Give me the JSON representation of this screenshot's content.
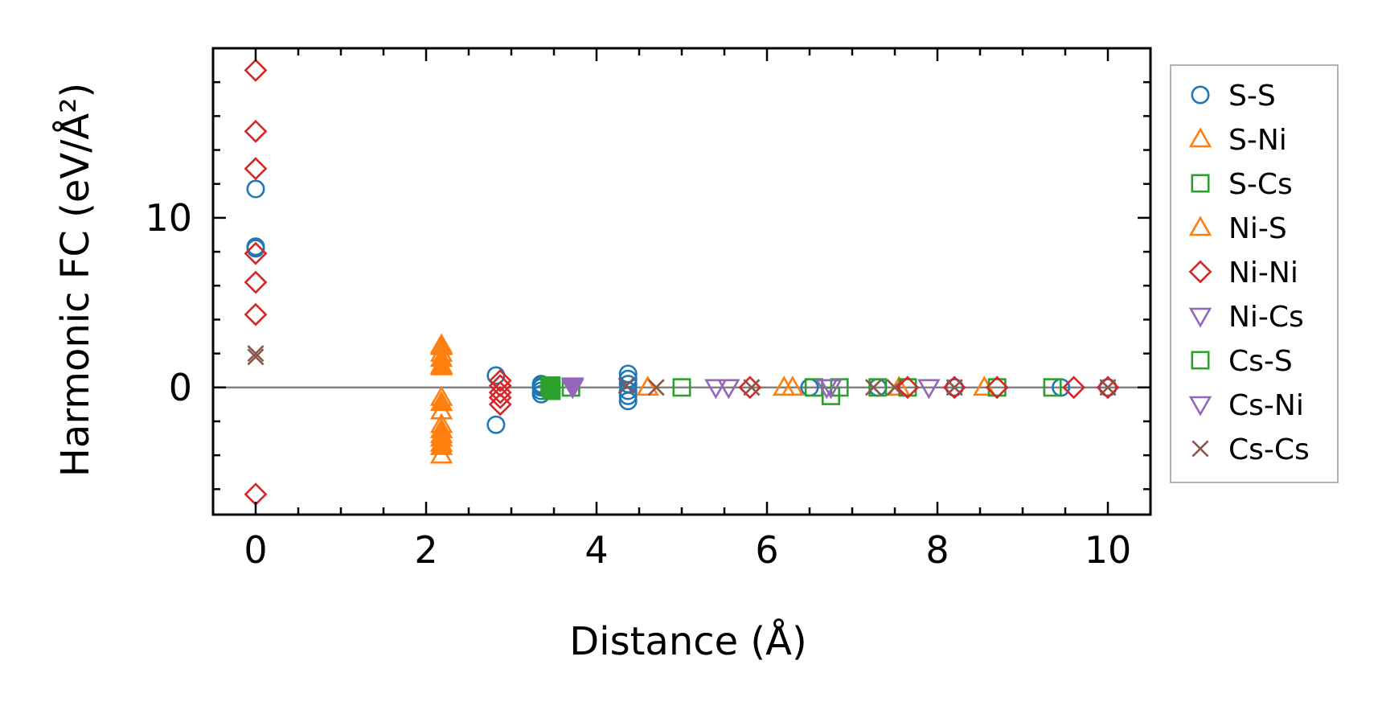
{
  "chart_data": {
    "type": "scatter",
    "title": "",
    "xlabel": "Distance (Å)",
    "ylabel": "Harmonic FC (eV/Å²)",
    "xlim": [
      -0.5,
      10.5
    ],
    "ylim": [
      -7.5,
      20
    ],
    "xticks": [
      0,
      2,
      4,
      6,
      8,
      10
    ],
    "yticks": [
      0,
      10
    ],
    "xtick_labels": [
      "0",
      "2",
      "4",
      "6",
      "8",
      "10"
    ],
    "ytick_labels": [
      "0",
      "10"
    ],
    "zero_line": 0,
    "legend_position": "right",
    "series": [
      {
        "name": "S-S",
        "marker": "circle",
        "color": "#1f77b4",
        "filled": false,
        "points": [
          [
            0,
            11.7
          ],
          [
            0,
            8.3
          ],
          [
            0,
            8.2
          ],
          [
            2.82,
            0.7
          ],
          [
            2.82,
            -2.2
          ],
          [
            3.35,
            0.2
          ],
          [
            3.35,
            0.0
          ],
          [
            3.35,
            -0.2
          ],
          [
            3.35,
            -0.4
          ],
          [
            3.36,
            0.1
          ],
          [
            4.37,
            0.8
          ],
          [
            4.37,
            0.5
          ],
          [
            4.37,
            0.2
          ],
          [
            4.37,
            -0.2
          ],
          [
            4.37,
            -0.5
          ],
          [
            4.37,
            -0.8
          ],
          [
            6.5,
            0.0
          ],
          [
            7.3,
            0.0
          ],
          [
            8.2,
            0.0
          ],
          [
            9.45,
            0.0
          ],
          [
            10.0,
            0.0
          ]
        ]
      },
      {
        "name": "S-Ni",
        "marker": "triangle-up",
        "color": "#ff7f0e",
        "filled": false,
        "points": [
          [
            2.18,
            2.5
          ],
          [
            2.18,
            2.0
          ],
          [
            2.18,
            1.3
          ],
          [
            2.18,
            -0.6
          ],
          [
            2.18,
            -1.4
          ],
          [
            2.18,
            -2.2
          ],
          [
            2.18,
            -2.8
          ],
          [
            2.18,
            -3.3
          ],
          [
            2.18,
            -4.0
          ],
          [
            4.6,
            0.0
          ],
          [
            6.2,
            0.0
          ],
          [
            6.3,
            0.0
          ],
          [
            7.55,
            0.0
          ],
          [
            8.55,
            0.0
          ]
        ]
      },
      {
        "name": "S-Cs",
        "marker": "square",
        "color": "#2ca02c",
        "filled": false,
        "points": [
          [
            3.45,
            0.1
          ],
          [
            3.7,
            0.0
          ],
          [
            5.0,
            0.0
          ],
          [
            6.55,
            0.0
          ],
          [
            6.75,
            -0.5
          ],
          [
            6.85,
            0.0
          ],
          [
            7.3,
            0.0
          ],
          [
            7.65,
            0.0
          ],
          [
            8.7,
            0.0
          ],
          [
            9.35,
            0.0
          ]
        ]
      },
      {
        "name": "Ni-S",
        "marker": "triangle-up",
        "color": "#ff7f0e",
        "filled": true,
        "points": [
          [
            2.18,
            2.4
          ],
          [
            2.18,
            1.7
          ],
          [
            2.18,
            1.2
          ],
          [
            2.18,
            -0.9
          ],
          [
            2.18,
            -2.5
          ],
          [
            2.18,
            -3.0
          ],
          [
            2.18,
            -3.5
          ]
        ]
      },
      {
        "name": "Ni-Ni",
        "marker": "diamond",
        "color": "#d62728",
        "filled": false,
        "points": [
          [
            0,
            18.7
          ],
          [
            0,
            15.1
          ],
          [
            0,
            12.9
          ],
          [
            0,
            7.9
          ],
          [
            0,
            6.2
          ],
          [
            0,
            4.3
          ],
          [
            0,
            -6.3
          ],
          [
            2.87,
            0.4
          ],
          [
            2.87,
            0.1
          ],
          [
            2.87,
            -0.3
          ],
          [
            2.87,
            -0.6
          ],
          [
            2.87,
            -1.0
          ],
          [
            5.8,
            0.0
          ],
          [
            7.65,
            0.0
          ],
          [
            8.2,
            0.0
          ],
          [
            8.7,
            0.0
          ],
          [
            9.6,
            0.0
          ],
          [
            10.0,
            0.0
          ]
        ]
      },
      {
        "name": "Ni-Cs",
        "marker": "triangle-down",
        "color": "#9467bd",
        "filled": false,
        "points": [
          [
            3.72,
            0.0
          ],
          [
            5.4,
            0.0
          ],
          [
            5.55,
            0.0
          ],
          [
            6.7,
            0.0
          ],
          [
            6.75,
            0.0
          ],
          [
            7.9,
            0.0
          ]
        ]
      },
      {
        "name": "Cs-S",
        "marker": "square",
        "color": "#2ca02c",
        "filled": true,
        "points": [
          [
            3.47,
            0.1
          ],
          [
            3.47,
            -0.2
          ]
        ]
      },
      {
        "name": "Cs-Ni",
        "marker": "triangle-down",
        "color": "#9467bd",
        "filled": true,
        "points": [
          [
            3.72,
            0.1
          ]
        ]
      },
      {
        "name": "Cs-Cs",
        "marker": "x",
        "color": "#8c564b",
        "filled": false,
        "points": [
          [
            0,
            2.0
          ],
          [
            0,
            1.8
          ],
          [
            4.35,
            0.1
          ],
          [
            4.7,
            0.0
          ],
          [
            5.82,
            0.0
          ],
          [
            7.25,
            0.0
          ],
          [
            7.5,
            0.0
          ],
          [
            8.2,
            0.0
          ],
          [
            10.0,
            0.0
          ]
        ]
      }
    ]
  }
}
